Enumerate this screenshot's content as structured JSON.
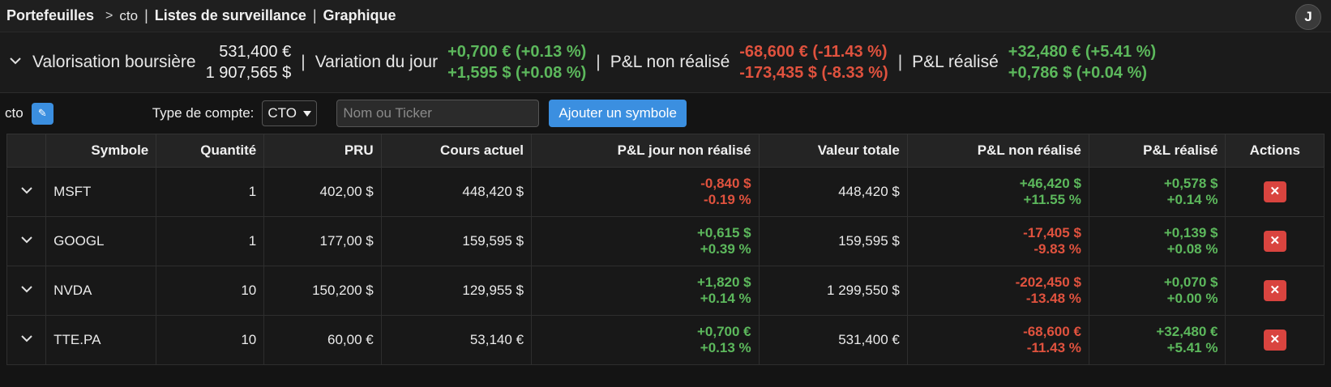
{
  "nav": {
    "portfolios": "Portefeuilles",
    "crumb_sep": ">",
    "current": "cto",
    "sep": "|",
    "watchlists": "Listes de surveillance",
    "chart": "Graphique",
    "avatar": "J"
  },
  "summary": {
    "valuation_label": "Valorisation boursière",
    "valuation_eur": "531,400 €",
    "valuation_usd": "1 907,565 $",
    "day_label": "Variation du jour",
    "day_eur": "+0,700 € (+0.13 %)",
    "day_usd": "+1,595 $ (+0.08 %)",
    "unrealized_label": "P&L non réalisé",
    "unrealized_eur": "-68,600 € (-11.43 %)",
    "unrealized_usd": "-173,435 $ (-8.33 %)",
    "realized_label": "P&L réalisé",
    "realized_eur": "+32,480 € (+5.41 %)",
    "realized_usd": "+0,786 $ (+0.04 %)"
  },
  "toolbar": {
    "portfolio_name": "cto",
    "edit_icon": "✎",
    "account_type_label": "Type de compte:",
    "account_type_value": "CTO",
    "search_placeholder": "Nom ou Ticker",
    "add_button": "Ajouter un symbole"
  },
  "table": {
    "headers": {
      "symbol": "Symbole",
      "quantity": "Quantité",
      "pru": "PRU",
      "price": "Cours actuel",
      "day_pl": "P&L jour non réalisé",
      "total": "Valeur totale",
      "unrealized": "P&L non réalisé",
      "realized": "P&L réalisé",
      "actions": "Actions"
    },
    "rows": [
      {
        "symbol": "MSFT",
        "qty": "1",
        "pru": "402,00 $",
        "price": "448,420 $",
        "day_amt": "-0,840 $",
        "day_pct": "-0.19 %",
        "total": "448,420 $",
        "unr_amt": "+46,420 $",
        "unr_pct": "+11.55 %",
        "rea_amt": "+0,578 $",
        "rea_pct": "+0.14 %"
      },
      {
        "symbol": "GOOGL",
        "qty": "1",
        "pru": "177,00 $",
        "price": "159,595 $",
        "day_amt": "+0,615 $",
        "day_pct": "+0.39 %",
        "total": "159,595 $",
        "unr_amt": "-17,405 $",
        "unr_pct": "-9.83 %",
        "rea_amt": "+0,139 $",
        "rea_pct": "+0.08 %"
      },
      {
        "symbol": "NVDA",
        "qty": "10",
        "pru": "150,200 $",
        "price": "129,955 $",
        "day_amt": "+1,820 $",
        "day_pct": "+0.14 %",
        "total": "1 299,550 $",
        "unr_amt": "-202,450 $",
        "unr_pct": "-13.48 %",
        "rea_amt": "+0,070 $",
        "rea_pct": "+0.00 %"
      },
      {
        "symbol": "TTE.PA",
        "qty": "10",
        "pru": "60,00 €",
        "price": "53,140 €",
        "day_amt": "+0,700 €",
        "day_pct": "+0.13 %",
        "total": "531,400 €",
        "unr_amt": "-68,600 €",
        "unr_pct": "-11.43 %",
        "rea_amt": "+32,480 €",
        "rea_pct": "+5.41 %"
      }
    ],
    "delete_icon": "✕"
  },
  "colors": {
    "positive": "#5cb85c",
    "negative": "#e0523e",
    "accent": "#3b8fe0",
    "danger": "#d9443f"
  }
}
